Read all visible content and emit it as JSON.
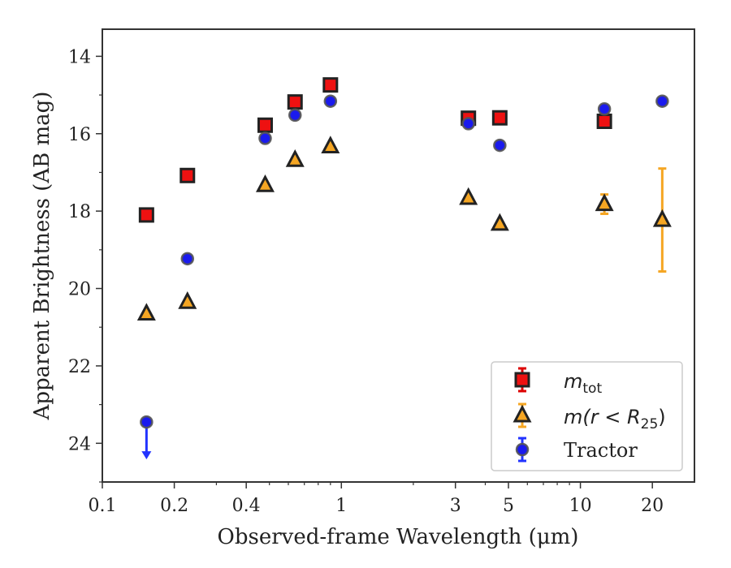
{
  "chart_data": {
    "type": "scatter",
    "xlabel": "Observed-frame Wavelength (μm)",
    "ylabel": "Apparent Brightness (AB mag)",
    "xscale": "log",
    "xlim": [
      0.1,
      30
    ],
    "ylim": [
      25.0,
      13.3
    ],
    "y_inverted": true,
    "x_ticks": [
      {
        "value": 0.1,
        "label": "0.1"
      },
      {
        "value": 0.2,
        "label": "0.2"
      },
      {
        "value": 0.4,
        "label": "0.4"
      },
      {
        "value": 1,
        "label": "1"
      },
      {
        "value": 3,
        "label": "3"
      },
      {
        "value": 5,
        "label": "5"
      },
      {
        "value": 10,
        "label": "10"
      },
      {
        "value": 20,
        "label": "20"
      }
    ],
    "y_ticks": [
      {
        "value": 14,
        "label": "14"
      },
      {
        "value": 16,
        "label": "16"
      },
      {
        "value": 18,
        "label": "18"
      },
      {
        "value": 20,
        "label": "20"
      },
      {
        "value": 22,
        "label": "22"
      },
      {
        "value": 24,
        "label": "24"
      }
    ],
    "grid": false,
    "legend_position": "lower-right",
    "series": [
      {
        "name": "m_tot",
        "legend_main": "m",
        "legend_sub": "tot",
        "marker": "square",
        "color": "#ee1111",
        "edge_color": "#222222",
        "errorbar_color": "#dd0000",
        "x": [
          0.153,
          0.227,
          0.48,
          0.64,
          0.9,
          3.4,
          4.6,
          12.6
        ],
        "y": [
          18.1,
          17.08,
          15.78,
          15.18,
          14.74,
          15.6,
          15.59,
          15.68
        ],
        "err": [
          0,
          0,
          0,
          0,
          0,
          0,
          0,
          0
        ]
      },
      {
        "name": "m(r < R25)",
        "legend_main": "m(r < R",
        "legend_sub": "25",
        "legend_tail": ")",
        "marker": "triangle",
        "color": "#f5a623",
        "edge_color": "#222222",
        "errorbar_color": "#f5a623",
        "x": [
          0.153,
          0.227,
          0.48,
          0.64,
          0.9,
          3.4,
          4.6,
          12.6,
          22.0
        ],
        "y": [
          20.65,
          20.35,
          17.33,
          16.68,
          16.33,
          17.66,
          18.33,
          17.82,
          18.23
        ],
        "err": [
          0,
          0,
          0,
          0,
          0,
          0,
          0,
          0.25,
          1.33
        ]
      },
      {
        "name": "Tractor",
        "legend_main": "Tractor",
        "marker": "circle",
        "color": "#1a1aee",
        "edge_color": "#555555",
        "errorbar_color": "#2233ff",
        "x": [
          0.153,
          0.227,
          0.48,
          0.64,
          0.9,
          3.4,
          4.6,
          12.6,
          22.0
        ],
        "y": [
          23.45,
          19.23,
          16.12,
          15.52,
          15.16,
          15.74,
          16.3,
          15.36,
          15.16
        ],
        "err": [
          0,
          0,
          0,
          0,
          0,
          0,
          0,
          0,
          0
        ],
        "upper_limit_index": 0
      }
    ]
  }
}
